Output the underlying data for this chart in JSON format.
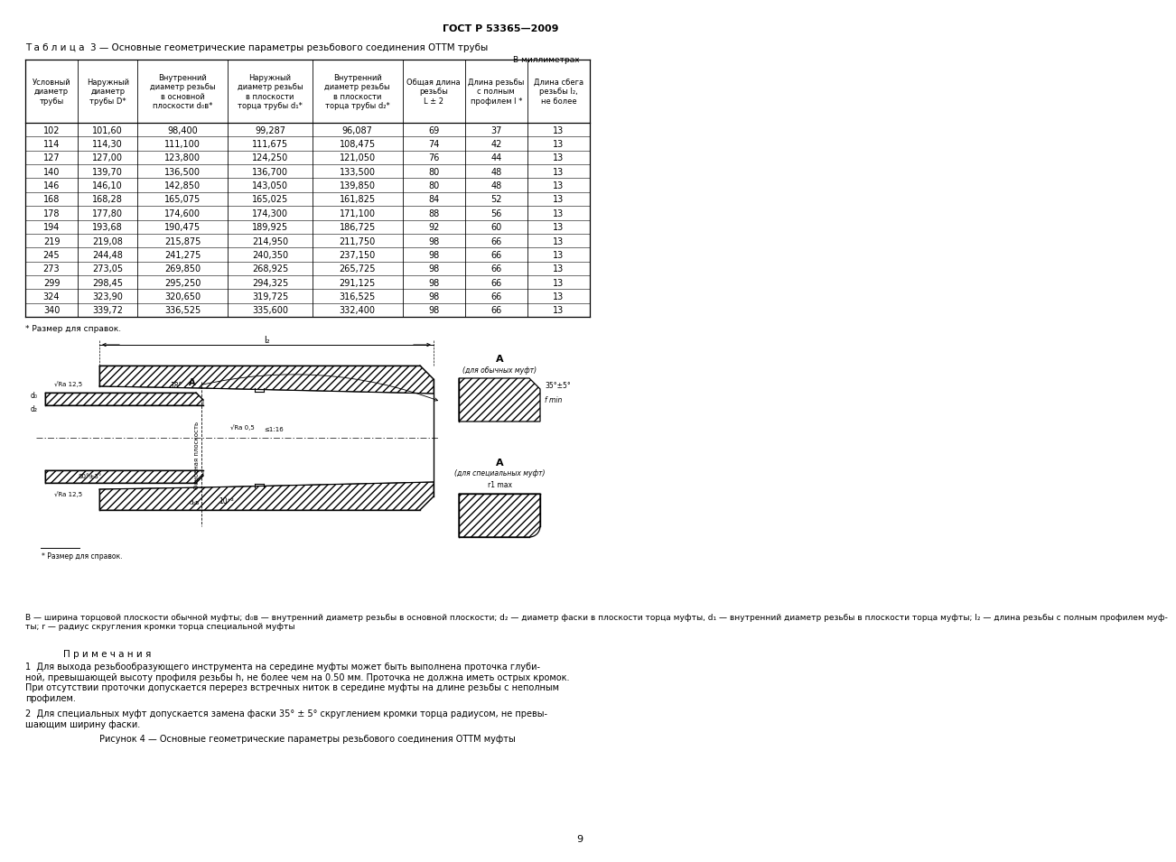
{
  "gost_header": "ГОСТ Р 53365—2009",
  "table_title": "Т а б л и ц а  3 — Основные геометрические параметры резьбового соединения ОТТМ трубы",
  "table_unit": "В миллиметрах",
  "col_headers": [
    "Условный\nдиаметр\nтрубы",
    "Наружный\nдиаметр\nтрубы D*",
    "Внутренний\nдиаметр резьбы\nв основной\nплоскости d₀в*",
    "Наружный\nдиаметр резьбы\nв плоскости\nторца трубы d₁*",
    "Внутренний\nдиаметр резьбы\nв плоскости\nторца трубы d₂*",
    "Общая длина\nрезьбы\nL ± 2",
    "Длина резьбы\nс полным\nпрофилем l *",
    "Длина сбега\nрезьбы l₂,\nне более"
  ],
  "table_data": [
    [
      "102",
      "101,60",
      "98,400",
      "99,287",
      "96,087",
      "69",
      "37",
      "13"
    ],
    [
      "114",
      "114,30",
      "111,100",
      "111,675",
      "108,475",
      "74",
      "42",
      "13"
    ],
    [
      "127",
      "127,00",
      "123,800",
      "124,250",
      "121,050",
      "76",
      "44",
      "13"
    ],
    [
      "140",
      "139,70",
      "136,500",
      "136,700",
      "133,500",
      "80",
      "48",
      "13"
    ],
    [
      "146",
      "146,10",
      "142,850",
      "143,050",
      "139,850",
      "80",
      "48",
      "13"
    ],
    [
      "168",
      "168,28",
      "165,075",
      "165,025",
      "161,825",
      "84",
      "52",
      "13"
    ],
    [
      "178",
      "177,80",
      "174,600",
      "174,300",
      "171,100",
      "88",
      "56",
      "13"
    ],
    [
      "194",
      "193,68",
      "190,475",
      "189,925",
      "186,725",
      "92",
      "60",
      "13"
    ],
    [
      "219",
      "219,08",
      "215,875",
      "214,950",
      "211,750",
      "98",
      "66",
      "13"
    ],
    [
      "245",
      "244,48",
      "241,275",
      "240,350",
      "237,150",
      "98",
      "66",
      "13"
    ],
    [
      "273",
      "273,05",
      "269,850",
      "268,925",
      "265,725",
      "98",
      "66",
      "13"
    ],
    [
      "299",
      "298,45",
      "295,250",
      "294,325",
      "291,125",
      "98",
      "66",
      "13"
    ],
    [
      "324",
      "323,90",
      "320,650",
      "319,725",
      "316,525",
      "98",
      "66",
      "13"
    ],
    [
      "340",
      "339,72",
      "336,525",
      "335,600",
      "332,400",
      "98",
      "66",
      "13"
    ]
  ],
  "footnote_table": "* Размер для справок.",
  "legend_text": "B — ширина торцовой плоскости обычной муфты; d₀в — внутренний диаметр резьбы в основной плоскости; d₂ — диаметр фаски в плоскости торца муфты, d₁ — внутренний диаметр резьбы в плоскости торца муфты; l₂ — длина резьбы с полным профилем муф-\nты; r — радиус скругления кромки торца специальной муфты",
  "notes_title": "П р и м е ч а н и я",
  "note1": "1  Для выхода резьбообразующего инструмента на середине муфты может быть выполнена проточка глуби-\nной, превышающей высоту профиля резьбы h, не более чем на 0.50 мм. Проточка не должна иметь острых кромок.\nПри отсутствии проточки допускается перерез встречных ниток в середине муфты на длине резьбы с неполным\nпрофилем.",
  "note2": "2  Для специальных муфт допускается замена фаски 35° ± 5° скруглением кромки торца радиусом, не превы-\nшающим ширину фаски.",
  "figure_caption": "Рисунок 4 — Основные геометрические параметры резьбового соединения ОТТМ муфты",
  "page_number": "9",
  "footnote_drawing": "* Размер для справок."
}
